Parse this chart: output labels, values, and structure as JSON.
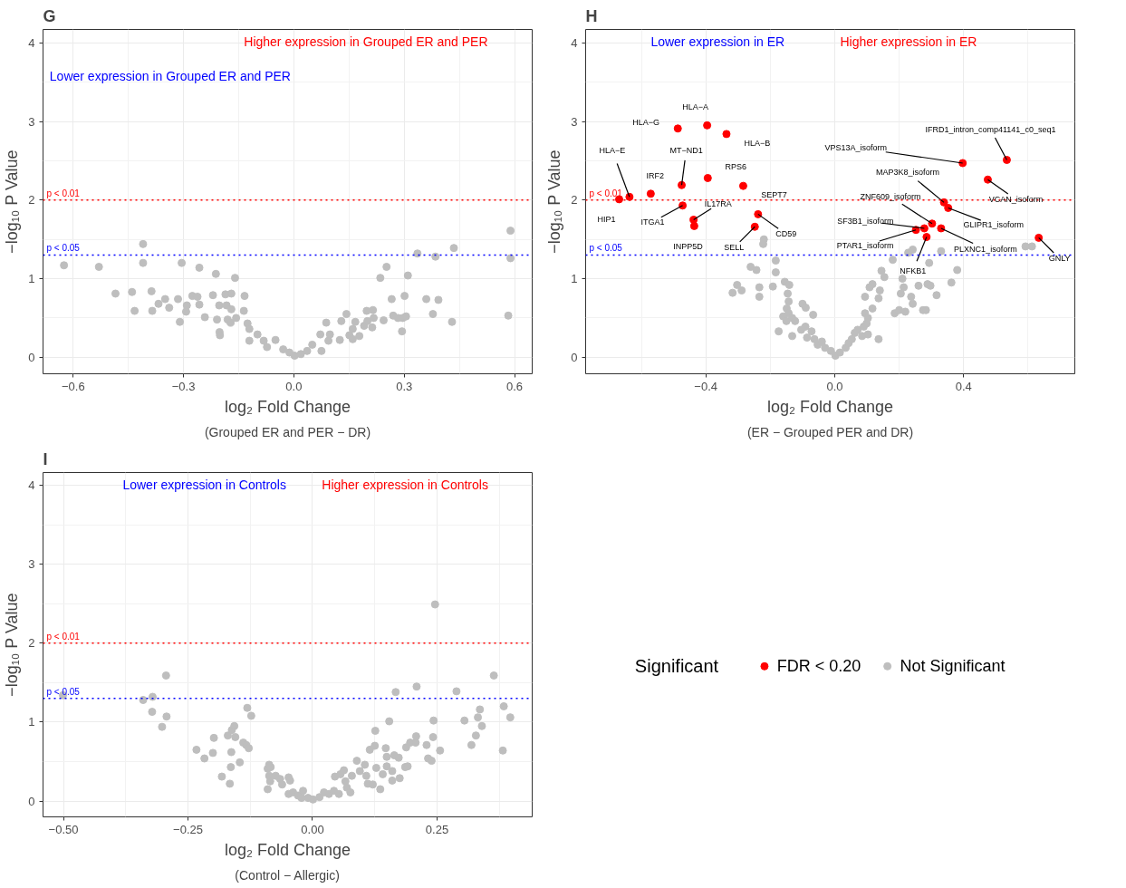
{
  "chart_data": [
    {
      "type": "scatter",
      "title": "G",
      "subtitle": "(Grouped ER and PER − DR)",
      "xlabel": "log₂ Fold Change",
      "ylabel": "−log₁₀ P Value",
      "xlim": [
        -0.682,
        0.648
      ],
      "ylim": [
        -0.21,
        4.17
      ],
      "xticks": [
        {
          "value": -0.6,
          "label": "−0.6"
        },
        {
          "value": -0.3,
          "label": "−0.3"
        },
        {
          "value": 0,
          "label": "0.0"
        },
        {
          "value": 0.3,
          "label": "0.3"
        },
        {
          "value": 0.6,
          "label": "0.6"
        }
      ],
      "yticks": [
        0,
        1,
        2,
        3,
        4
      ],
      "grid": true,
      "marker": "circle",
      "legend": false,
      "ref_lines": [
        {
          "axis": "y",
          "value": 2,
          "label": "p < 0.01",
          "color": "#ff0000",
          "line_style": "dotted"
        },
        {
          "axis": "y",
          "value": 1.3,
          "label": "p < 0.05",
          "color": "#0000ff",
          "line_style": "dotted"
        }
      ],
      "annotations": [
        "Higher expression in Grouped ER and PER",
        "Lower expression in Grouped ER and PER"
      ],
      "series": [
        {
          "color": "#bebebe",
          "x": [
            -0.625,
            -0.53,
            -0.41,
            -0.41,
            -0.305,
            -0.257,
            -0.212,
            -0.16,
            -0.485,
            -0.44,
            -0.387,
            -0.433,
            -0.385,
            -0.368,
            -0.35,
            -0.339,
            -0.315,
            -0.291,
            -0.293,
            -0.31,
            -0.276,
            -0.262,
            -0.257,
            -0.242,
            -0.22,
            -0.209,
            -0.203,
            -0.202,
            -0.201,
            -0.186,
            -0.17,
            -0.183,
            -0.17,
            -0.18,
            -0.172,
            -0.157,
            -0.136,
            -0.134,
            -0.126,
            -0.121,
            -0.121,
            -0.099,
            -0.082,
            -0.073,
            -0.05,
            -0.029,
            -0.012,
            0.002,
            0.019,
            0.036,
            0.05,
            0.072,
            0.075,
            0.088,
            0.094,
            0.098,
            0.125,
            0.129,
            0.143,
            0.151,
            0.16,
            0.167,
            0.16,
            0.178,
            0.191,
            0.2,
            0.198,
            0.215,
            0.217,
            0.213,
            0.235,
            0.252,
            0.244,
            0.266,
            0.27,
            0.283,
            0.296,
            0.294,
            0.301,
            0.305,
            0.31,
            0.336,
            0.36,
            0.378,
            0.385,
            0.393,
            0.43,
            0.435,
            0.583,
            0.589,
            0.589
          ],
          "values": [
            1.17,
            1.15,
            1.44,
            1.2,
            1.2,
            1.14,
            1.06,
            1.01,
            0.81,
            0.83,
            0.84,
            0.59,
            0.59,
            0.68,
            0.74,
            0.63,
            0.74,
            0.66,
            0.58,
            0.45,
            0.78,
            0.77,
            0.67,
            0.51,
            0.79,
            0.48,
            0.66,
            0.32,
            0.28,
            0.8,
            0.81,
            0.66,
            0.61,
            0.48,
            0.44,
            0.5,
            0.59,
            0.78,
            0.43,
            0.36,
            0.21,
            0.29,
            0.21,
            0.13,
            0.22,
            0.1,
            0.06,
            0.02,
            0.04,
            0.08,
            0.16,
            0.29,
            0.08,
            0.44,
            0.21,
            0.29,
            0.22,
            0.46,
            0.55,
            0.28,
            0.36,
            0.45,
            0.23,
            0.27,
            0.4,
            0.46,
            0.59,
            0.6,
            0.5,
            0.38,
            1.01,
            1.15,
            0.47,
            0.74,
            0.53,
            0.5,
            0.5,
            0.33,
            0.78,
            0.52,
            1.04,
            1.32,
            0.74,
            0.55,
            1.28,
            0.73,
            0.45,
            1.39,
            0.53,
            1.26,
            1.61
          ]
        }
      ]
    },
    {
      "type": "scatter",
      "title": "H",
      "subtitle": "(ER − Grouped PER and DR)",
      "xlabel": "log₂ Fold Change",
      "ylabel": "−log₁₀ P Value",
      "xlim": [
        -0.773,
        0.745
      ],
      "ylim": [
        -0.21,
        4.17
      ],
      "xticks": [
        {
          "value": -0.4,
          "label": "−0.4"
        },
        {
          "value": 0,
          "label": "0.0"
        },
        {
          "value": 0.4,
          "label": "0.4"
        }
      ],
      "yticks": [
        0,
        1,
        2,
        3,
        4
      ],
      "grid": true,
      "marker": "circle",
      "legend": "bottom",
      "legend_title": "Significant",
      "ref_lines": [
        {
          "axis": "y",
          "value": 2,
          "label": "p < 0.01",
          "color": "#ff0000",
          "line_style": "dotted"
        },
        {
          "axis": "y",
          "value": 1.3,
          "label": "p < 0.05",
          "color": "#0000ff",
          "line_style": "dotted"
        }
      ],
      "annotations": [
        "Higher expression in ER",
        "Lower expression in ER",
        {
          "text": "HLA−A",
          "x": -0.396,
          "y": 2.95
        },
        {
          "text": "HLA−G",
          "x": -0.487,
          "y": 2.91
        },
        {
          "text": "HLA−B",
          "x": -0.336,
          "y": 2.84
        },
        {
          "text": "HLA−E",
          "x": -0.637,
          "y": 2.04
        },
        {
          "text": "MT−ND1",
          "x": -0.475,
          "y": 2.19
        },
        {
          "text": "IRF2",
          "x": -0.571,
          "y": 2.08
        },
        {
          "text": "RPS6",
          "x": -0.394,
          "y": 2.28
        },
        {
          "text": "SEPT7",
          "x": -0.284,
          "y": 2.18
        },
        {
          "text": "IL17RA",
          "x": -0.438,
          "y": 1.75
        },
        {
          "text": "HIP1",
          "x": -0.669,
          "y": 2.01
        },
        {
          "text": "ITGA1",
          "x": -0.472,
          "y": 1.93
        },
        {
          "text": "INPP5D",
          "x": -0.436,
          "y": 1.67
        },
        {
          "text": "SELL",
          "x": -0.248,
          "y": 1.66
        },
        {
          "text": "CD59",
          "x": -0.238,
          "y": 1.82
        },
        {
          "text": "IFRD1_intron_comp41141_c0_seq1",
          "x": 0.534,
          "y": 2.51
        },
        {
          "text": "VPS13A_isoform",
          "x": 0.397,
          "y": 2.47
        },
        {
          "text": "MAP3K8_isoform",
          "x": 0.339,
          "y": 1.97
        },
        {
          "text": "ZNF609_isoform",
          "x": 0.302,
          "y": 1.7
        },
        {
          "text": "VCAN_isoform",
          "x": 0.475,
          "y": 2.26
        },
        {
          "text": "SF3B1_isoform",
          "x": 0.278,
          "y": 1.64
        },
        {
          "text": "GLIPR1_isoform",
          "x": 0.352,
          "y": 1.9
        },
        {
          "text": "PTAR1_isoform",
          "x": 0.252,
          "y": 1.62
        },
        {
          "text": "PLXNC1_isoform",
          "x": 0.33,
          "y": 1.64
        },
        {
          "text": "NFKB1",
          "x": 0.285,
          "y": 1.53
        },
        {
          "text": "GNLY",
          "x": 0.633,
          "y": 1.52
        }
      ],
      "series": [
        {
          "name": "FDR < 0.20",
          "color": "#ff0000",
          "x": [
            -0.487,
            -0.396,
            -0.336,
            -0.637,
            -0.669,
            -0.571,
            -0.475,
            -0.394,
            -0.284,
            -0.472,
            -0.438,
            -0.436,
            -0.238,
            -0.248,
            0.397,
            0.534,
            0.475,
            0.339,
            0.352,
            0.302,
            0.278,
            0.252,
            0.285,
            0.33,
            0.633
          ],
          "values": [
            2.91,
            2.95,
            2.84,
            2.04,
            2.01,
            2.08,
            2.19,
            2.28,
            2.18,
            1.93,
            1.75,
            1.67,
            1.82,
            1.66,
            2.47,
            2.51,
            2.26,
            1.97,
            1.9,
            1.7,
            1.64,
            1.62,
            1.53,
            1.64,
            1.52
          ]
        },
        {
          "name": "Not Significant",
          "color": "#bebebe",
          "x": [
            -0.22,
            -0.222,
            -0.183,
            -0.261,
            -0.243,
            -0.183,
            -0.303,
            -0.289,
            -0.317,
            -0.234,
            -0.234,
            -0.192,
            -0.155,
            -0.141,
            -0.146,
            -0.143,
            -0.149,
            -0.143,
            -0.1,
            -0.09,
            -0.067,
            -0.16,
            -0.15,
            -0.132,
            -0.123,
            -0.174,
            -0.132,
            -0.104,
            -0.091,
            -0.072,
            -0.086,
            -0.063,
            -0.053,
            -0.04,
            -0.03,
            -0.012,
            0.002,
            0.016,
            0.034,
            0.043,
            0.053,
            0.062,
            0.071,
            0.09,
            0.099,
            0.085,
            0.103,
            0.136,
            0.094,
            0.103,
            0.117,
            0.094,
            0.108,
            0.117,
            0.136,
            0.14,
            0.145,
            0.154,
            0.18,
            0.186,
            0.2,
            0.219,
            0.21,
            0.214,
            0.205,
            0.237,
            0.242,
            0.228,
            0.242,
            0.26,
            0.274,
            0.283,
            0.288,
            0.297,
            0.316,
            0.293,
            0.33,
            0.362,
            0.38,
            0.592,
            0.612
          ],
          "values": [
            1.5,
            1.44,
            1.23,
            1.15,
            1.11,
            1.08,
            0.92,
            0.85,
            0.82,
            0.89,
            0.77,
            0.9,
            0.96,
            0.92,
            0.81,
            0.71,
            0.62,
            0.56,
            0.68,
            0.63,
            0.54,
            0.52,
            0.46,
            0.5,
            0.46,
            0.33,
            0.27,
            0.35,
            0.39,
            0.33,
            0.25,
            0.23,
            0.16,
            0.2,
            0.12,
            0.08,
            0.02,
            0.06,
            0.12,
            0.18,
            0.23,
            0.31,
            0.35,
            0.39,
            0.43,
            0.27,
            0.29,
            0.23,
            0.56,
            0.5,
            0.62,
            0.77,
            0.89,
            0.93,
            0.75,
            0.85,
            1.1,
            1.02,
            1.24,
            0.56,
            0.6,
            0.58,
            1.0,
            0.89,
            0.81,
            0.77,
            0.68,
            1.33,
            1.37,
            0.91,
            0.6,
            0.6,
            0.93,
            0.91,
            0.79,
            1.2,
            1.35,
            0.95,
            1.11,
            1.41,
            1.41
          ]
        }
      ]
    },
    {
      "type": "scatter",
      "title": "I",
      "subtitle": "(Control − Allergic)",
      "xlabel": "log₂ Fold Change",
      "ylabel": "−log₁₀ P Value",
      "xlim": [
        -0.541,
        0.441
      ],
      "ylim": [
        -0.2,
        4.16
      ],
      "xticks": [
        {
          "value": -0.5,
          "label": "−0.50"
        },
        {
          "value": -0.25,
          "label": "−0.25"
        },
        {
          "value": 0,
          "label": "0.00"
        },
        {
          "value": 0.25,
          "label": "0.25"
        }
      ],
      "yticks": [
        0,
        1,
        2,
        3,
        4
      ],
      "grid": true,
      "marker": "circle",
      "legend": false,
      "ref_lines": [
        {
          "axis": "y",
          "value": 2,
          "label": "p < 0.01",
          "color": "#ff0000",
          "line_style": "dotted"
        },
        {
          "axis": "y",
          "value": 1.3,
          "label": "p < 0.05",
          "color": "#0000ff",
          "line_style": "dotted"
        }
      ],
      "annotations": [
        "Higher expression in Controls",
        "Lower expression in Controls"
      ],
      "series": [
        {
          "color": "#bebebe",
          "x": [
            -0.501,
            -0.34,
            -0.321,
            -0.294,
            -0.322,
            -0.293,
            -0.302,
            -0.233,
            -0.217,
            -0.2,
            -0.198,
            -0.182,
            -0.166,
            -0.164,
            -0.163,
            -0.17,
            -0.162,
            -0.157,
            -0.155,
            -0.146,
            -0.139,
            -0.133,
            -0.128,
            -0.131,
            -0.123,
            -0.09,
            -0.087,
            -0.084,
            -0.087,
            -0.085,
            -0.09,
            -0.074,
            -0.065,
            -0.061,
            -0.048,
            -0.045,
            -0.048,
            -0.039,
            -0.029,
            -0.019,
            -0.022,
            -0.009,
            0.001,
            0.014,
            0.023,
            0.033,
            0.043,
            0.053,
            0.045,
            0.056,
            0.063,
            0.066,
            0.069,
            0.079,
            0.076,
            0.089,
            0.095,
            0.105,
            0.108,
            0.111,
            0.115,
            0.125,
            0.126,
            0.121,
            0.128,
            0.136,
            0.141,
            0.147,
            0.149,
            0.149,
            0.154,
            0.16,
            0.164,
            0.16,
            0.173,
            0.175,
            0.186,
            0.191,
            0.188,
            0.196,
            0.207,
            0.208,
            0.167,
            0.209,
            0.229,
            0.232,
            0.239,
            0.242,
            0.243,
            0.246,
            0.256,
            0.289,
            0.305,
            0.319,
            0.328,
            0.332,
            0.336,
            0.34,
            0.364,
            0.382,
            0.384,
            0.397
          ],
          "values": [
            1.34,
            1.28,
            1.32,
            1.59,
            1.13,
            1.07,
            0.94,
            0.65,
            0.54,
            0.61,
            0.8,
            0.31,
            0.22,
            0.43,
            0.62,
            0.83,
            0.9,
            0.95,
            0.81,
            0.49,
            0.74,
            0.71,
            0.67,
            1.18,
            1.08,
            0.41,
            0.46,
            0.43,
            0.32,
            0.25,
            0.15,
            0.32,
            0.28,
            0.21,
            0.3,
            0.26,
            0.09,
            0.11,
            0.07,
            0.13,
            0.04,
            0.04,
            0.02,
            0.05,
            0.11,
            0.09,
            0.13,
            0.09,
            0.31,
            0.34,
            0.39,
            0.25,
            0.17,
            0.32,
            0.11,
            0.51,
            0.38,
            0.46,
            0.32,
            0.22,
            0.65,
            0.7,
            0.89,
            0.21,
            0.42,
            0.15,
            0.34,
            0.67,
            0.56,
            0.44,
            1.01,
            0.38,
            0.58,
            0.26,
            0.55,
            0.29,
            0.43,
            0.44,
            0.68,
            0.74,
            0.74,
            0.82,
            1.38,
            1.45,
            0.71,
            0.54,
            0.51,
            0.81,
            1.02,
            2.49,
            0.64,
            1.39,
            1.02,
            0.71,
            0.83,
            1.06,
            1.16,
            0.95,
            1.59,
            0.64,
            1.2,
            1.06
          ]
        }
      ]
    }
  ]
}
